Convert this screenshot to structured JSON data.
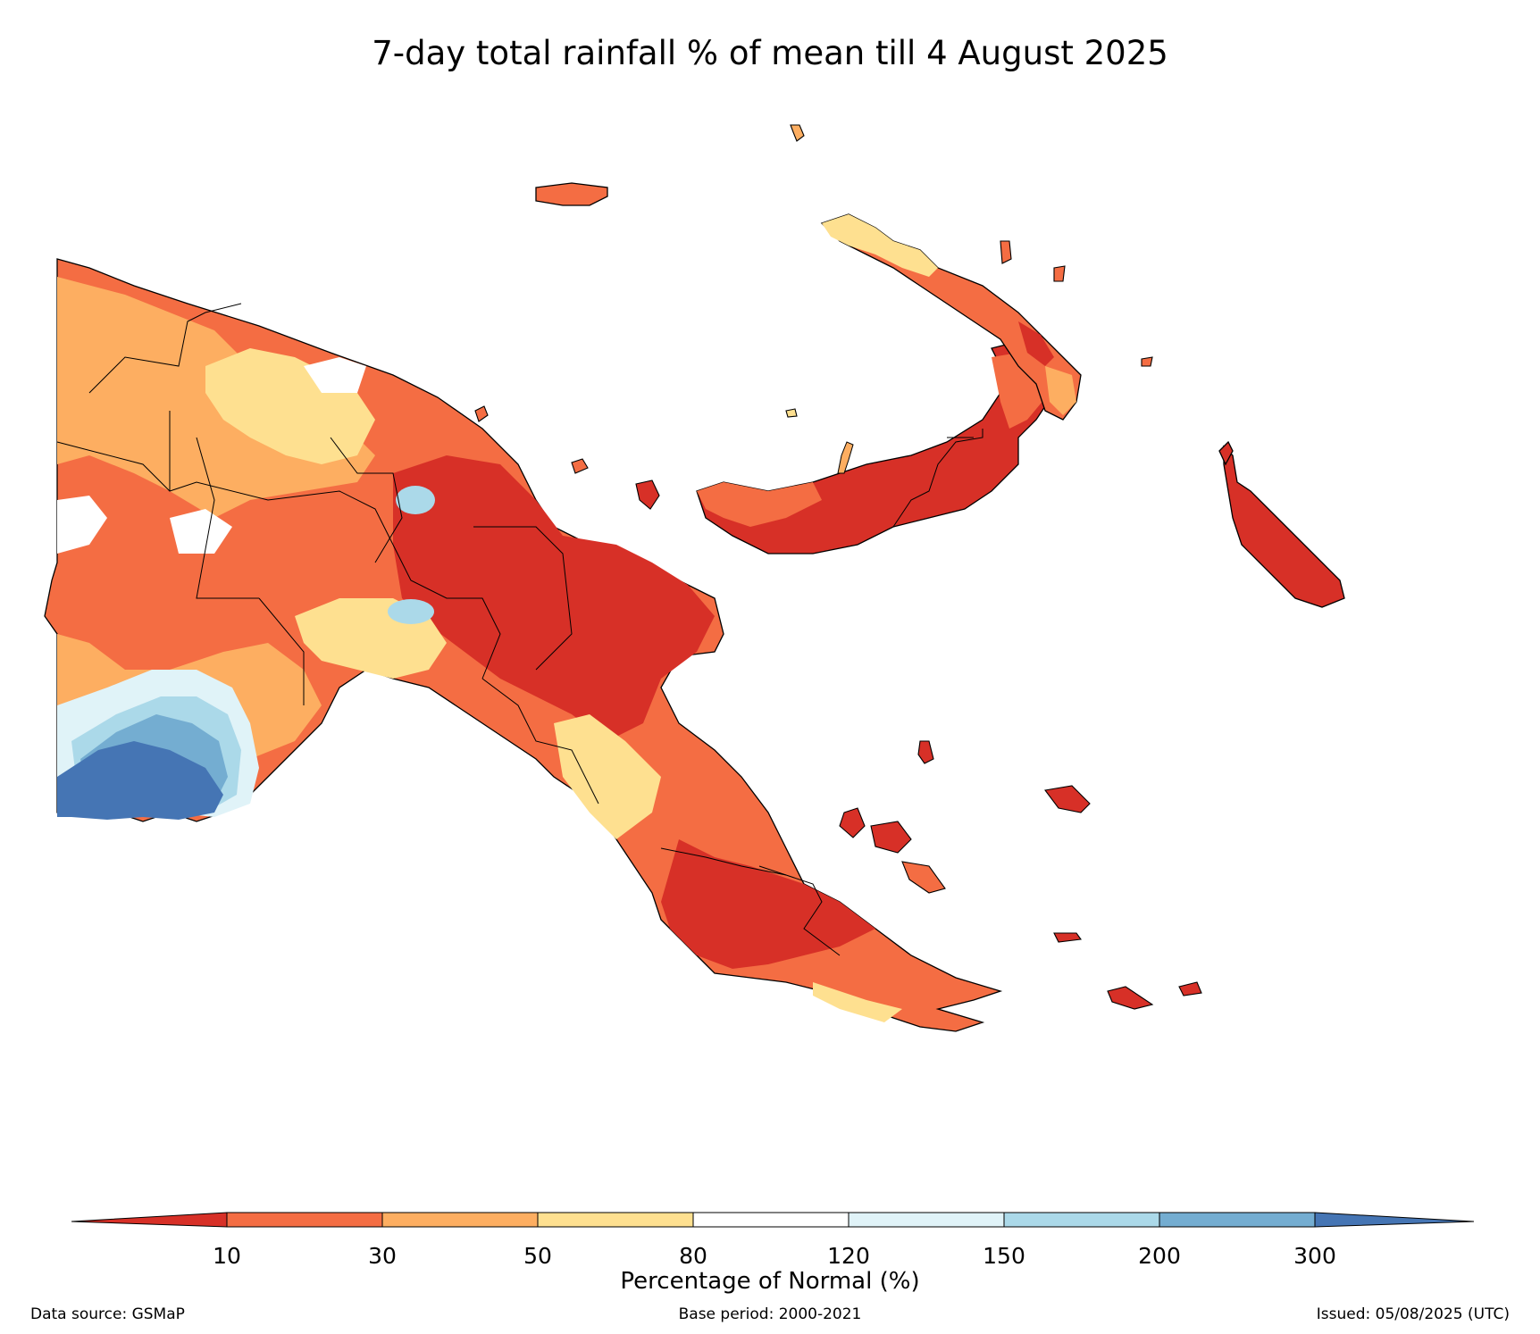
{
  "title": "7-day total rainfall % of mean till 4 August 2025",
  "colorbar": {
    "label": "Percentage of Normal (%)",
    "ticks": [
      "10",
      "30",
      "50",
      "80",
      "120",
      "150",
      "200",
      "300"
    ],
    "under_color": "#d73027",
    "over_color": "#4575b4",
    "colors": [
      "#f46d43",
      "#fdae61",
      "#fee090",
      "#ffffff",
      "#e0f3f8",
      "#abd9e9",
      "#74add1"
    ]
  },
  "footer": {
    "source": "Data source: GSMaP",
    "base": "Base period: 2000-2021",
    "issued": "Issued: 05/08/2025 (UTC)"
  }
}
